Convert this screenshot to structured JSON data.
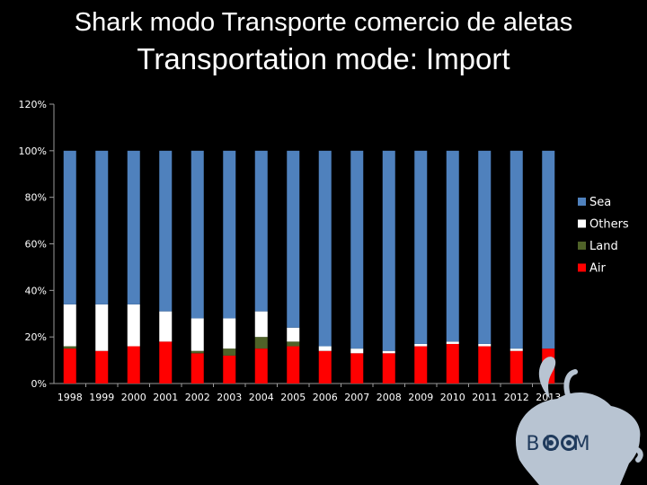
{
  "chart_data": {
    "type": "bar",
    "stacked": true,
    "title": "Shark modo Transporte comercio de aletas",
    "subtitle": "Transportation mode: Import",
    "xlabel": "",
    "ylabel": "",
    "ylim": [
      0,
      120
    ],
    "y_ticks": [
      "0%",
      "20%",
      "40%",
      "60%",
      "80%",
      "100%",
      "120%"
    ],
    "grid": false,
    "legend_position": "right",
    "categories": [
      "1998",
      "1999",
      "2000",
      "2001",
      "2002",
      "2003",
      "2004",
      "2005",
      "2006",
      "2007",
      "2008",
      "2009",
      "2010",
      "2011",
      "2012",
      "2013"
    ],
    "series": [
      {
        "name": "Air",
        "color": "#ff0000",
        "values": [
          15,
          14,
          16,
          18,
          13,
          12,
          15,
          16,
          14,
          13,
          13,
          16,
          17,
          16,
          14,
          15
        ]
      },
      {
        "name": "Land",
        "color": "#4f6228",
        "values": [
          1,
          0,
          0,
          0,
          1,
          3,
          5,
          2,
          0,
          0,
          0,
          0,
          0,
          0,
          0,
          0
        ]
      },
      {
        "name": "Others",
        "color": "#ffffff",
        "values": [
          18,
          20,
          18,
          13,
          14,
          13,
          11,
          6,
          2,
          2,
          1,
          1,
          1,
          1,
          1,
          0
        ]
      },
      {
        "name": "Sea",
        "color": "#4f81bd",
        "values": [
          66,
          66,
          66,
          69,
          72,
          72,
          69,
          76,
          84,
          85,
          86,
          83,
          82,
          83,
          85,
          85
        ]
      }
    ]
  },
  "logo": {
    "text": "BLOOM",
    "icon": "squid-icon"
  }
}
